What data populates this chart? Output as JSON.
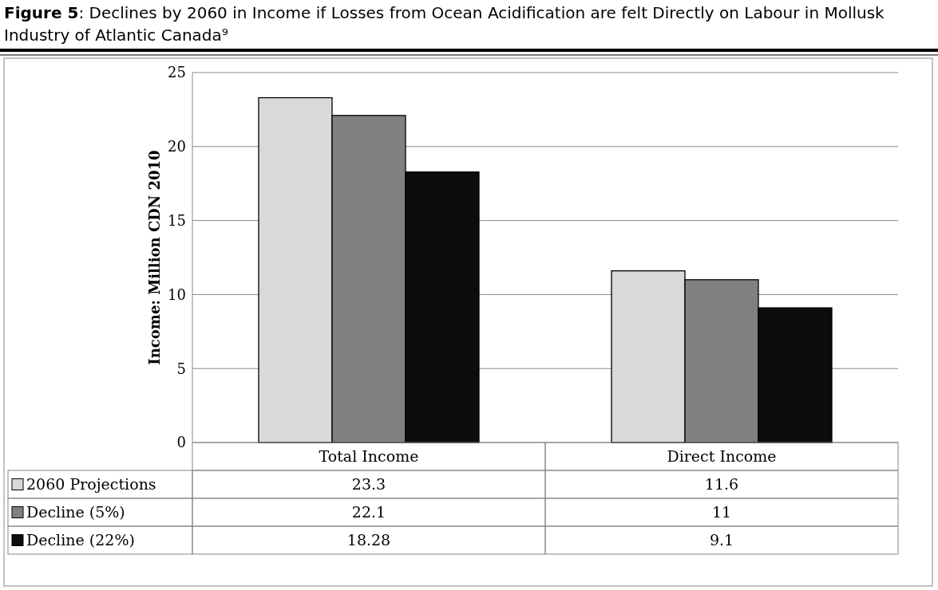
{
  "chart_data": {
    "type": "bar",
    "title": "Figure 5: Declines by 2060 in Income if Losses from Ocean Acidification are felt Directly on Labour in Mollusk Industry of Atlantic Canada⁹",
    "ylabel": "Income: Million CDN 2010",
    "categories": [
      "Total Income",
      "Direct Income"
    ],
    "series": [
      {
        "name": "2060 Projections",
        "color": "#d9d9d9",
        "values": [
          23.3,
          11.6
        ]
      },
      {
        "name": "Decline (5%)",
        "color": "#808080",
        "values": [
          22.1,
          11
        ]
      },
      {
        "name": "Decline (22%)",
        "color": "#0d0d0d",
        "values": [
          18.28,
          9.1
        ]
      }
    ],
    "ylim": [
      0,
      25
    ],
    "yticks": [
      0,
      5,
      10,
      15,
      20,
      25
    ],
    "grid": "y",
    "legend": "bottom",
    "data_labels": true
  }
}
